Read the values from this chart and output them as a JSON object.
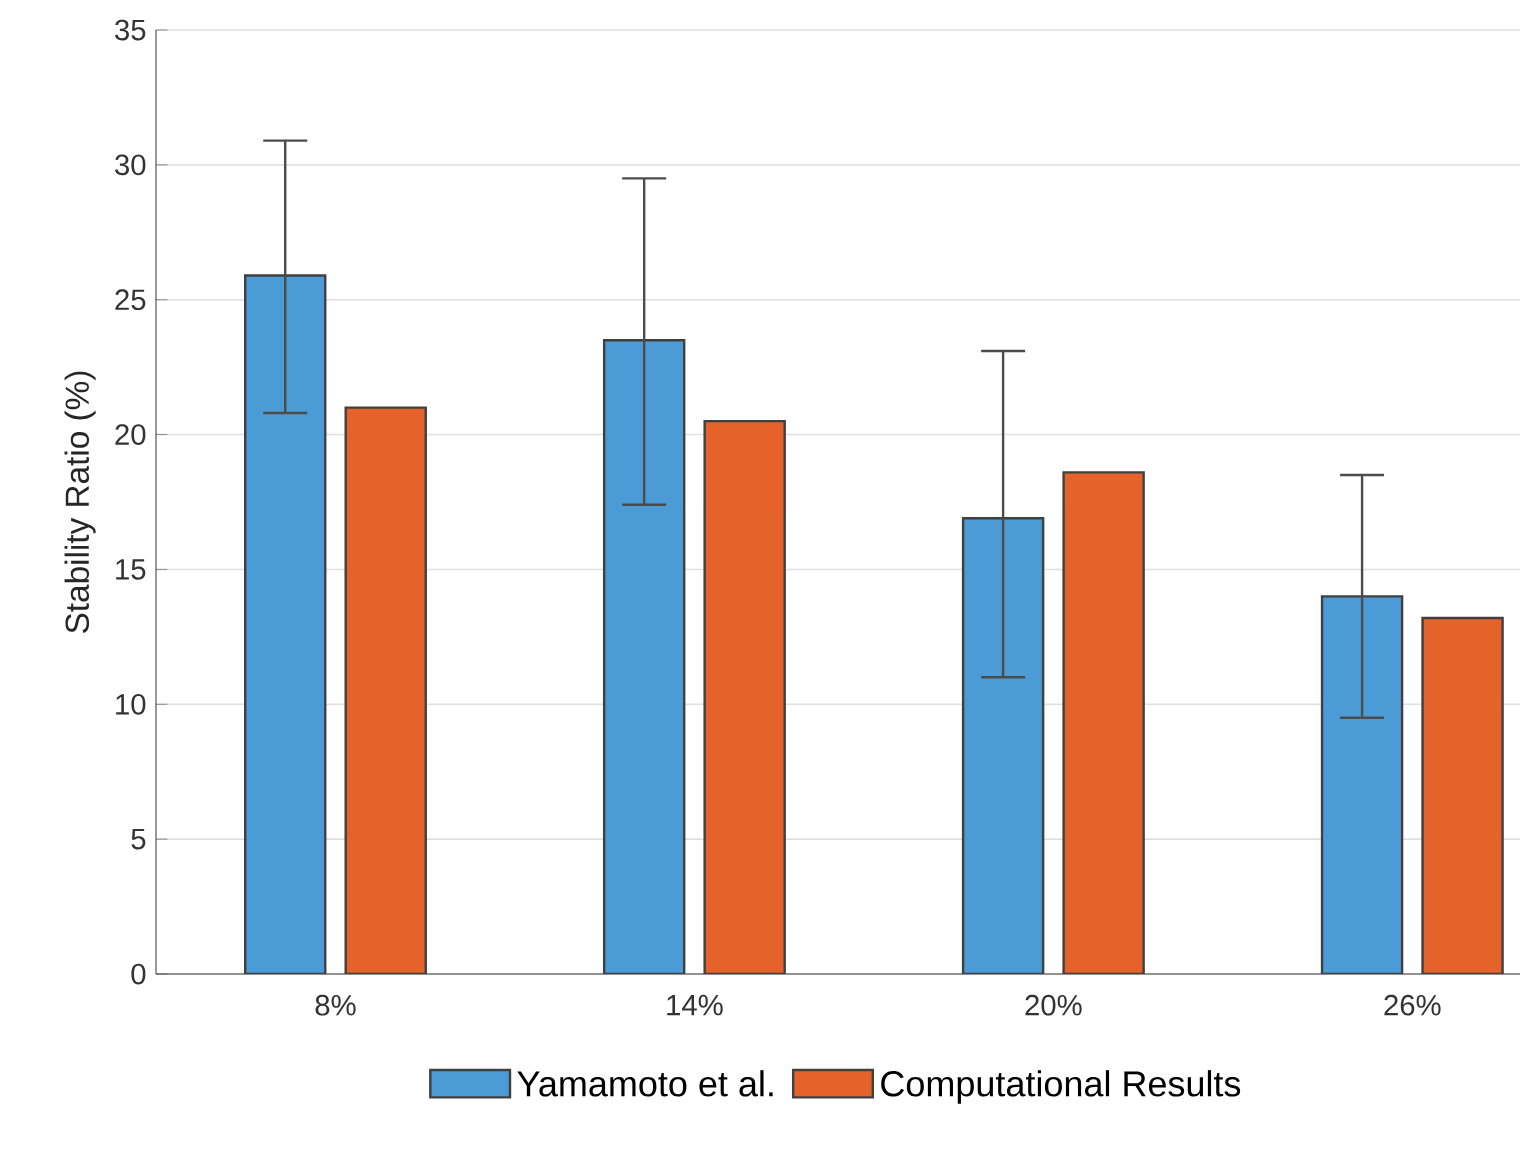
{
  "chart_data": {
    "type": "bar",
    "ylabel": "Stability Ratio (%)",
    "categories": [
      "8%",
      "14%",
      "20%",
      "26%"
    ],
    "series": [
      {
        "name": "Yamamoto et al.",
        "color": "#4a9bd6",
        "values": [
          25.9,
          23.5,
          16.9,
          14.0
        ],
        "errors": [
          [
            20.8,
            30.9
          ],
          [
            17.4,
            29.5
          ],
          [
            11.0,
            23.1
          ],
          [
            9.5,
            18.5
          ]
        ]
      },
      {
        "name": "Computational Results",
        "color": "#e5622a",
        "values": [
          21.0,
          20.5,
          18.6,
          13.2
        ]
      }
    ],
    "ylim": [
      0,
      35
    ],
    "yticks": [
      0,
      5,
      10,
      15,
      20,
      25,
      30,
      35
    ],
    "grid": "y",
    "legend": "bottom"
  }
}
